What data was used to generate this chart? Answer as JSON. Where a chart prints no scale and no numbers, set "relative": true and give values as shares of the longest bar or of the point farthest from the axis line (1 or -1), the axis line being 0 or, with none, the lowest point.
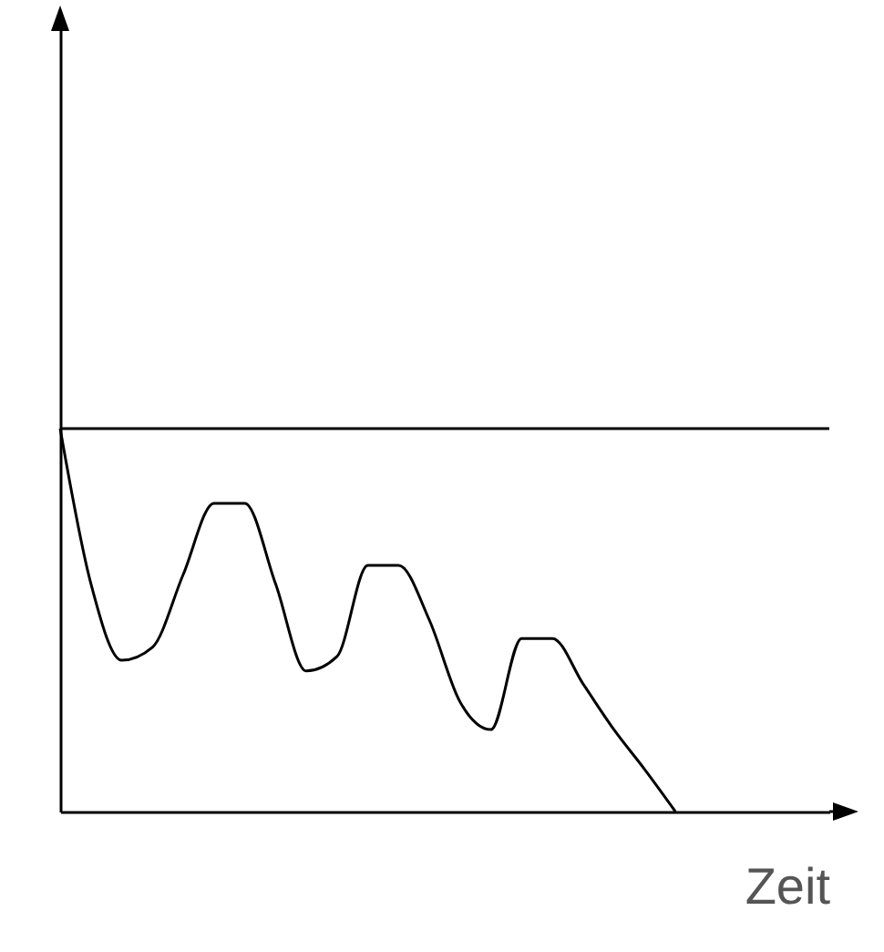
{
  "chart_data": {
    "type": "line",
    "xlabel": "Zeit",
    "relative": true,
    "tick_labels": false,
    "color": "#000000",
    "categories": [
      null,
      null,
      null,
      null,
      null,
      null,
      null,
      null,
      null,
      null,
      null,
      null,
      null,
      null,
      null,
      null,
      null,
      null,
      null,
      null,
      null,
      null,
      null,
      null,
      null,
      null
    ],
    "values": [
      1.0,
      0.595,
      0.395,
      0.429,
      0.619,
      0.805,
      0.805,
      0.595,
      0.367,
      0.405,
      0.643,
      0.643,
      0.5,
      0.286,
      0.214,
      0.452,
      0.452,
      0.333,
      0.214,
      0.11,
      0,
      null,
      null,
      null,
      null,
      null
    ],
    "ref_lines": [
      {
        "axis": "y",
        "value": 1.0,
        "color": "#000000"
      }
    ]
  }
}
